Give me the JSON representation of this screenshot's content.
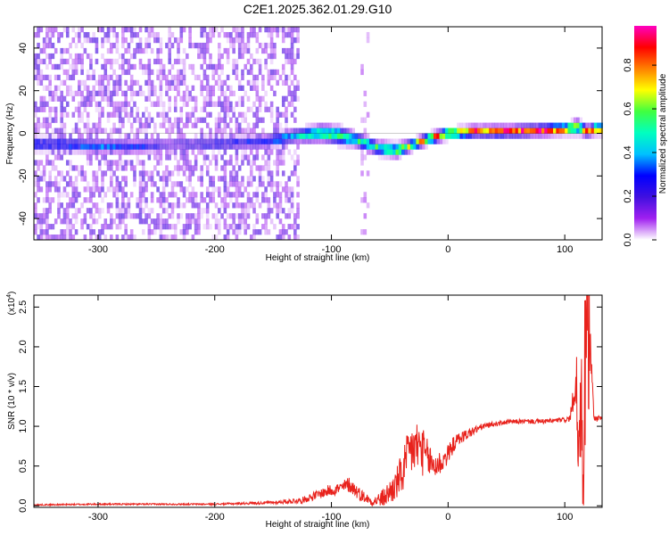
{
  "title": "C2E1.2025.362.01.29.G10",
  "colors": {
    "spectrogram_scale": [
      "#ffffff",
      "#a020f0",
      "#4010e0",
      "#0000ff",
      "#00c0ff",
      "#00ffc0",
      "#40ff40",
      "#ffff00",
      "#ff8000",
      "#ff0000",
      "#ff00c0"
    ],
    "snr_line": "#e8221c",
    "axes": "#000000",
    "background": "#ffffff"
  },
  "chart_data": [
    {
      "type": "heatmap",
      "name": "spectrogram",
      "xlabel": "Height of straight line (km)",
      "ylabel": "Frequency (Hz)",
      "xlim": [
        -355,
        132
      ],
      "ylim": [
        -50,
        50
      ],
      "x_ticks": [
        -300,
        -200,
        -100,
        0,
        100
      ],
      "y_ticks": [
        -40,
        -20,
        0,
        20,
        40
      ],
      "noise_band": {
        "x": [
          -355,
          -128
        ],
        "y": [
          -50,
          48
        ],
        "typical_amplitude": 0.12
      },
      "sparse_column": {
        "x": [
          -75,
          -68
        ],
        "y": [
          -45,
          48
        ]
      },
      "ridge": {
        "x": [
          -335,
          -300,
          -260,
          -240,
          -200,
          -160,
          -130,
          -110,
          -95,
          -80,
          -60,
          -45,
          -30,
          -15,
          0,
          20,
          50,
          80,
          100,
          110,
          118,
          125,
          132
        ],
        "freq": [
          -5,
          -6,
          -6,
          -5,
          -5,
          -4,
          -1,
          0,
          -1,
          -3,
          -7,
          -8,
          -5,
          -2,
          0,
          1,
          1,
          1.5,
          2,
          3,
          1,
          2,
          2
        ],
        "amplitude": [
          0.32,
          0.35,
          0.28,
          0.2,
          0.28,
          0.3,
          0.45,
          0.55,
          0.6,
          0.55,
          0.55,
          0.6,
          0.7,
          0.8,
          0.8,
          0.85,
          0.9,
          0.92,
          0.9,
          0.7,
          0.85,
          0.95,
          0.95
        ],
        "width_hz": [
          4,
          4,
          4,
          4,
          4,
          4,
          4,
          5,
          5,
          4,
          4,
          4,
          3,
          3,
          3,
          3,
          3,
          3,
          3,
          4,
          3,
          3,
          3
        ]
      },
      "colorbar": {
        "label": "Normalized spectral amplitude",
        "range": [
          0.0,
          0.98
        ],
        "ticks": [
          "0.0",
          "0.2",
          "0.4",
          "0.6",
          "0.8"
        ],
        "tick_values": [
          0.0,
          0.2,
          0.4,
          0.6,
          0.8
        ]
      }
    },
    {
      "type": "line",
      "name": "snr",
      "xlabel": "Height of straight line (km)",
      "ylabel": "SNR (10 * v/v)",
      "y_multiplier": "(x10",
      "y_multiplier_exp": "4",
      "y_multiplier_close": ")",
      "xlim": [
        -355,
        132
      ],
      "ylim": [
        -0.02,
        2.65
      ],
      "x_ticks": [
        -300,
        -200,
        -100,
        0,
        100
      ],
      "y_ticks": [
        "0.0",
        "0.5",
        "1.0",
        "1.5",
        "2.0",
        "2.5"
      ],
      "y_tick_values": [
        0.0,
        0.5,
        1.0,
        1.5,
        2.0,
        2.5
      ],
      "series": [
        {
          "name": "SNR",
          "x": [
            -355,
            -300,
            -200,
            -150,
            -125,
            -110,
            -100,
            -92,
            -85,
            -75,
            -65,
            -55,
            -45,
            -38,
            -32,
            -25,
            -18,
            -12,
            -5,
            0,
            5,
            10,
            20,
            30,
            40,
            50,
            60,
            70,
            80,
            90,
            100,
            105,
            108,
            110,
            112,
            114,
            116,
            118,
            120,
            125,
            132
          ],
          "y": [
            0.01,
            0.02,
            0.02,
            0.04,
            0.07,
            0.15,
            0.2,
            0.22,
            0.27,
            0.14,
            0.05,
            0.1,
            0.25,
            0.45,
            0.7,
            0.75,
            0.6,
            0.5,
            0.55,
            0.65,
            0.78,
            0.85,
            0.93,
            1.0,
            1.03,
            1.05,
            1.06,
            1.06,
            1.06,
            1.07,
            1.08,
            1.1,
            1.3,
            1.6,
            0.5,
            1.9,
            0.3,
            2.3,
            2.65,
            1.1,
            1.1
          ],
          "noise": [
            0.01,
            0.01,
            0.01,
            0.02,
            0.04,
            0.06,
            0.08,
            0.08,
            0.1,
            0.08,
            0.05,
            0.12,
            0.2,
            0.3,
            0.35,
            0.35,
            0.25,
            0.2,
            0.15,
            0.12,
            0.1,
            0.08,
            0.06,
            0.04,
            0.03,
            0.03,
            0.03,
            0.03,
            0.03,
            0.03,
            0.03,
            0.05,
            0.2,
            0.4,
            0.4,
            0.6,
            0.6,
            0.6,
            0.8,
            0.05,
            0.03
          ]
        }
      ]
    }
  ]
}
